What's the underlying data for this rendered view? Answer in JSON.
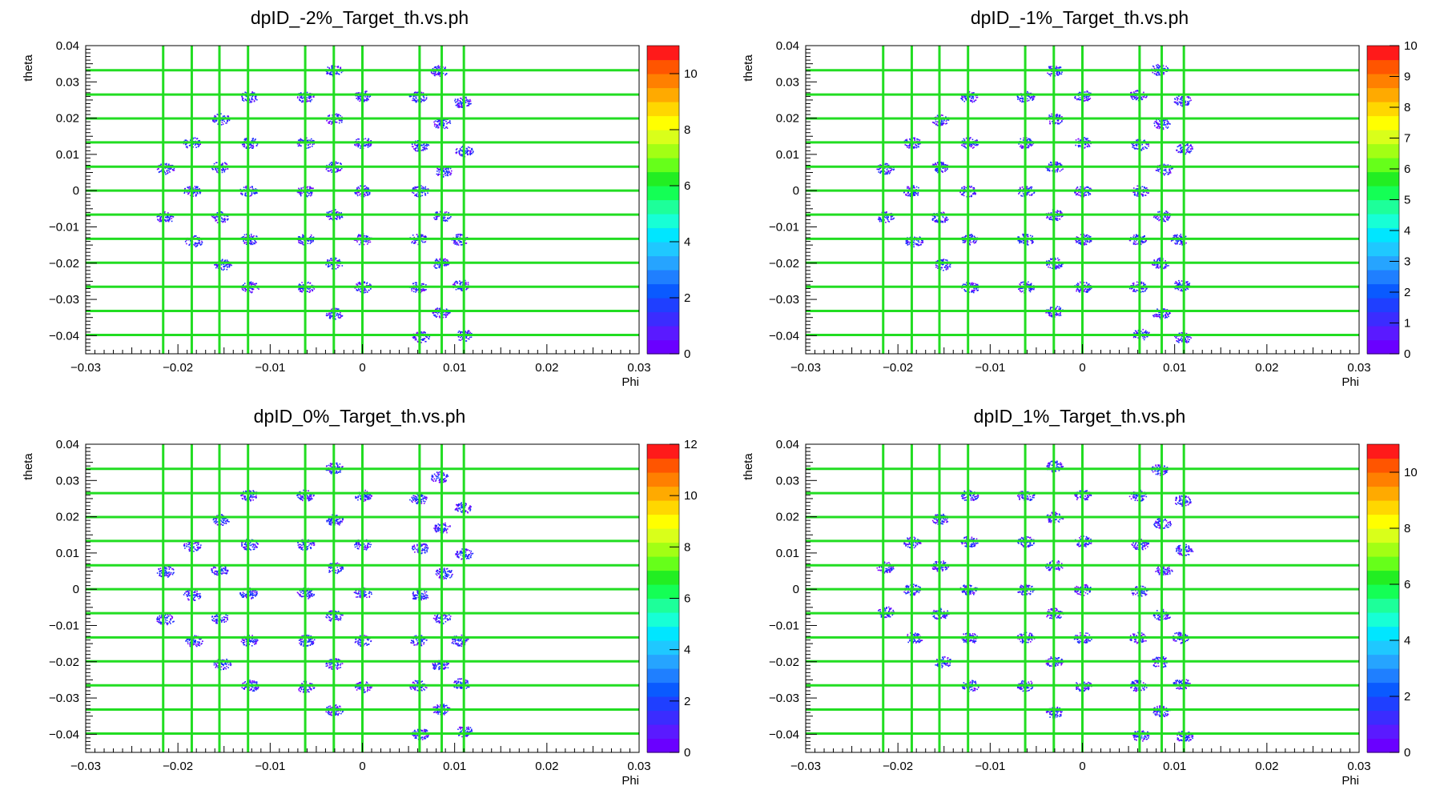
{
  "chart_data": [
    {
      "type": "heatmap",
      "title": "dpID_-2%_Target_th.vs.ph",
      "xlabel": "Phi",
      "ylabel": "theta",
      "xlim": [
        -0.03,
        0.03
      ],
      "ylim": [
        -0.045,
        0.04
      ],
      "xticks": [
        "−0.03",
        "−0.02",
        "−0.01",
        "0",
        "0.01",
        "0.02",
        "0.03"
      ],
      "yticks": [
        "0.04",
        "0.03",
        "0.02",
        "0.01",
        "0",
        "−0.01",
        "−0.02",
        "−0.03",
        "−0.04"
      ],
      "zlim": [
        0,
        11
      ],
      "zticks": [
        "0",
        "2",
        "4",
        "6",
        "8",
        "10"
      ],
      "zvalues": [
        0,
        2,
        4,
        6,
        8,
        10
      ],
      "grid_x": [
        -0.0216,
        -0.0185,
        -0.0155,
        -0.0124,
        -0.0062,
        -0.0031,
        0.0,
        0.0062,
        0.0086,
        0.011
      ],
      "grid_y": [
        0.0332,
        0.0265,
        0.0199,
        0.0133,
        0.0066,
        0.0,
        -0.0066,
        -0.0133,
        -0.0199,
        -0.0265,
        -0.0332,
        -0.0398
      ],
      "spots": [
        [
          -0.0031,
          0.0332
        ],
        [
          0.0083,
          0.0332
        ],
        [
          -0.0123,
          0.026
        ],
        [
          -0.0062,
          0.026
        ],
        [
          0.0,
          0.0263
        ],
        [
          0.006,
          0.026
        ],
        [
          0.0108,
          0.0245
        ],
        [
          -0.0154,
          0.0199
        ],
        [
          -0.0031,
          0.0199
        ],
        [
          0.0086,
          0.0186
        ],
        [
          -0.0185,
          0.0133
        ],
        [
          -0.0123,
          0.0133
        ],
        [
          -0.0062,
          0.0133
        ],
        [
          0.0,
          0.0133
        ],
        [
          0.0062,
          0.0125
        ],
        [
          0.011,
          0.011
        ],
        [
          -0.0214,
          0.0062
        ],
        [
          -0.0155,
          0.0066
        ],
        [
          -0.0031,
          0.0066
        ],
        [
          0.0088,
          0.0055
        ],
        [
          -0.0185,
          0.0
        ],
        [
          -0.0124,
          0.0
        ],
        [
          -0.0062,
          0.0
        ],
        [
          0.0,
          0.0
        ],
        [
          0.0062,
          0.0
        ],
        [
          -0.0214,
          -0.0072
        ],
        [
          -0.0155,
          -0.0072
        ],
        [
          -0.0031,
          -0.0066
        ],
        [
          0.0086,
          -0.0069
        ],
        [
          -0.0183,
          -0.0138
        ],
        [
          -0.0123,
          -0.0133
        ],
        [
          -0.0062,
          -0.0133
        ],
        [
          0.0,
          -0.0133
        ],
        [
          0.006,
          -0.0133
        ],
        [
          0.0105,
          -0.0133
        ],
        [
          -0.0152,
          -0.0203
        ],
        [
          -0.0031,
          -0.0199
        ],
        [
          0.0084,
          -0.0199
        ],
        [
          -0.0122,
          -0.0265
        ],
        [
          -0.0062,
          -0.0265
        ],
        [
          0.0,
          -0.0265
        ],
        [
          0.006,
          -0.0265
        ],
        [
          0.0107,
          -0.026
        ],
        [
          -0.0031,
          -0.0338
        ],
        [
          0.0085,
          -0.0335
        ],
        [
          0.0063,
          -0.0402
        ],
        [
          0.011,
          -0.0398
        ]
      ]
    },
    {
      "type": "heatmap",
      "title": "dpID_-1%_Target_th.vs.ph",
      "xlabel": "Phi",
      "ylabel": "theta",
      "xlim": [
        -0.03,
        0.03
      ],
      "ylim": [
        -0.045,
        0.04
      ],
      "xticks": [
        "−0.03",
        "−0.02",
        "−0.01",
        "0",
        "0.01",
        "0.02",
        "0.03"
      ],
      "yticks": [
        "0.04",
        "0.03",
        "0.02",
        "0.01",
        "0",
        "−0.01",
        "−0.02",
        "−0.03",
        "−0.04"
      ],
      "zlim": [
        0,
        10
      ],
      "zticks": [
        "0",
        "1",
        "2",
        "3",
        "4",
        "5",
        "6",
        "7",
        "8",
        "9",
        "10"
      ],
      "zvalues": [
        0,
        1,
        2,
        3,
        4,
        5,
        6,
        7,
        8,
        9,
        10
      ],
      "grid_x": [
        -0.0216,
        -0.0185,
        -0.0155,
        -0.0124,
        -0.0062,
        -0.0031,
        0.0,
        0.0062,
        0.0086,
        0.011
      ],
      "grid_y": [
        0.0332,
        0.0265,
        0.0199,
        0.0133,
        0.0066,
        0.0,
        -0.0066,
        -0.0133,
        -0.0199,
        -0.0265,
        -0.0332,
        -0.0398
      ],
      "spots": [
        [
          -0.0031,
          0.0332
        ],
        [
          0.0083,
          0.0335
        ],
        [
          -0.0123,
          0.026
        ],
        [
          -0.0062,
          0.026
        ],
        [
          0.0,
          0.0263
        ],
        [
          0.006,
          0.0265
        ],
        [
          0.0108,
          0.025
        ],
        [
          -0.0154,
          0.0195
        ],
        [
          -0.0031,
          0.0199
        ],
        [
          0.0086,
          0.0186
        ],
        [
          -0.0185,
          0.0133
        ],
        [
          -0.0123,
          0.0133
        ],
        [
          -0.0062,
          0.0133
        ],
        [
          0.0,
          0.0133
        ],
        [
          0.0062,
          0.0128
        ],
        [
          0.011,
          0.0118
        ],
        [
          -0.0214,
          0.0062
        ],
        [
          -0.0155,
          0.0066
        ],
        [
          -0.0031,
          0.0066
        ],
        [
          0.0088,
          0.006
        ],
        [
          -0.0185,
          0.0
        ],
        [
          -0.0124,
          0.0
        ],
        [
          -0.0062,
          0.0
        ],
        [
          0.0,
          0.0
        ],
        [
          0.0062,
          0.0
        ],
        [
          -0.0214,
          -0.0072
        ],
        [
          -0.0155,
          -0.0072
        ],
        [
          -0.0031,
          -0.0066
        ],
        [
          0.0086,
          -0.0069
        ],
        [
          -0.0183,
          -0.0138
        ],
        [
          -0.0123,
          -0.0133
        ],
        [
          -0.0062,
          -0.0133
        ],
        [
          0.0,
          -0.0133
        ],
        [
          0.006,
          -0.0133
        ],
        [
          0.0105,
          -0.0133
        ],
        [
          -0.0152,
          -0.0203
        ],
        [
          -0.0031,
          -0.0199
        ],
        [
          0.0084,
          -0.0199
        ],
        [
          -0.0122,
          -0.0265
        ],
        [
          -0.0062,
          -0.0265
        ],
        [
          0.0,
          -0.0265
        ],
        [
          0.006,
          -0.0265
        ],
        [
          0.0107,
          -0.026
        ],
        [
          -0.0031,
          -0.0332
        ],
        [
          0.0085,
          -0.0338
        ],
        [
          0.0063,
          -0.0395
        ],
        [
          0.0108,
          -0.0405
        ]
      ]
    },
    {
      "type": "heatmap",
      "title": "dpID_0%_Target_th.vs.ph",
      "xlabel": "Phi",
      "ylabel": "theta",
      "xlim": [
        -0.03,
        0.03
      ],
      "ylim": [
        -0.045,
        0.04
      ],
      "xticks": [
        "−0.03",
        "−0.02",
        "−0.01",
        "0",
        "0.01",
        "0.02",
        "0.03"
      ],
      "yticks": [
        "0.04",
        "0.03",
        "0.02",
        "0.01",
        "0",
        "−0.01",
        "−0.02",
        "−0.03",
        "−0.04"
      ],
      "zlim": [
        0,
        12
      ],
      "zticks": [
        "0",
        "2",
        "4",
        "6",
        "8",
        "10",
        "12"
      ],
      "zvalues": [
        0,
        2,
        4,
        6,
        8,
        10,
        12
      ],
      "grid_x": [
        -0.0216,
        -0.0185,
        -0.0155,
        -0.0124,
        -0.0062,
        -0.0031,
        0.0,
        0.0062,
        0.0086,
        0.011
      ],
      "grid_y": [
        0.0332,
        0.0265,
        0.0199,
        0.0133,
        0.0066,
        0.0,
        -0.0066,
        -0.0133,
        -0.0199,
        -0.0265,
        -0.0332,
        -0.0398
      ],
      "spots": [
        [
          -0.0031,
          0.0335
        ],
        [
          0.0083,
          0.031
        ],
        [
          -0.0123,
          0.026
        ],
        [
          -0.0062,
          0.026
        ],
        [
          0.0,
          0.026
        ],
        [
          0.006,
          0.025
        ],
        [
          0.0108,
          0.0225
        ],
        [
          -0.0154,
          0.0192
        ],
        [
          -0.0031,
          0.0192
        ],
        [
          0.0086,
          0.017
        ],
        [
          -0.0185,
          0.012
        ],
        [
          -0.0123,
          0.0125
        ],
        [
          -0.0062,
          0.0125
        ],
        [
          0.0,
          0.0125
        ],
        [
          0.0062,
          0.0115
        ],
        [
          0.011,
          0.0098
        ],
        [
          -0.0214,
          0.005
        ],
        [
          -0.0155,
          0.0055
        ],
        [
          -0.0031,
          0.006
        ],
        [
          0.0088,
          0.0045
        ],
        [
          -0.0185,
          -0.0015
        ],
        [
          -0.0124,
          -0.001
        ],
        [
          -0.0062,
          -0.001
        ],
        [
          0.0,
          -0.001
        ],
        [
          0.0062,
          -0.0015
        ],
        [
          -0.0214,
          -0.0082
        ],
        [
          -0.0155,
          -0.0078
        ],
        [
          -0.0031,
          -0.0072
        ],
        [
          0.0086,
          -0.0078
        ],
        [
          -0.0183,
          -0.0142
        ],
        [
          -0.0123,
          -0.014
        ],
        [
          -0.0062,
          -0.014
        ],
        [
          0.0,
          -0.014
        ],
        [
          0.006,
          -0.014
        ],
        [
          0.0105,
          -0.014
        ],
        [
          -0.0152,
          -0.0205
        ],
        [
          -0.0031,
          -0.0205
        ],
        [
          0.0084,
          -0.0208
        ],
        [
          -0.0122,
          -0.0265
        ],
        [
          -0.0062,
          -0.0268
        ],
        [
          0.0,
          -0.0268
        ],
        [
          0.006,
          -0.0265
        ],
        [
          0.0107,
          -0.026
        ],
        [
          -0.0031,
          -0.0332
        ],
        [
          0.0085,
          -0.033
        ],
        [
          0.0063,
          -0.0398
        ],
        [
          0.011,
          -0.039
        ]
      ]
    },
    {
      "type": "heatmap",
      "title": "dpID_1%_Target_th.vs.ph",
      "xlabel": "Phi",
      "ylabel": "theta",
      "xlim": [
        -0.03,
        0.03
      ],
      "ylim": [
        -0.045,
        0.04
      ],
      "xticks": [
        "−0.03",
        "−0.02",
        "−0.01",
        "0",
        "0.01",
        "0.02",
        "0.03"
      ],
      "yticks": [
        "0.04",
        "0.03",
        "0.02",
        "0.01",
        "0",
        "−0.01",
        "−0.02",
        "−0.03",
        "−0.04"
      ],
      "zlim": [
        0,
        11
      ],
      "zticks": [
        "0",
        "2",
        "4",
        "6",
        "8",
        "10"
      ],
      "zvalues": [
        0,
        2,
        4,
        6,
        8,
        10
      ],
      "grid_x": [
        -0.0216,
        -0.0185,
        -0.0155,
        -0.0124,
        -0.0062,
        -0.0031,
        0.0,
        0.0062,
        0.0086,
        0.011
      ],
      "grid_y": [
        0.0332,
        0.0265,
        0.0199,
        0.0133,
        0.0066,
        0.0,
        -0.0066,
        -0.0133,
        -0.0199,
        -0.0265,
        -0.0332,
        -0.0398
      ],
      "spots": [
        [
          -0.0031,
          0.034
        ],
        [
          0.0083,
          0.0332
        ],
        [
          -0.0123,
          0.026
        ],
        [
          -0.0062,
          0.026
        ],
        [
          0.0,
          0.026
        ],
        [
          0.006,
          0.026
        ],
        [
          0.0108,
          0.0245
        ],
        [
          -0.0154,
          0.0195
        ],
        [
          -0.0031,
          0.0199
        ],
        [
          0.0086,
          0.0183
        ],
        [
          -0.0185,
          0.013
        ],
        [
          -0.0123,
          0.0133
        ],
        [
          -0.0062,
          0.0133
        ],
        [
          0.0,
          0.0133
        ],
        [
          0.0062,
          0.0125
        ],
        [
          0.011,
          0.011
        ],
        [
          -0.0214,
          0.0062
        ],
        [
          -0.0155,
          0.0066
        ],
        [
          -0.0031,
          0.0066
        ],
        [
          0.0088,
          0.0055
        ],
        [
          -0.0185,
          0.0
        ],
        [
          -0.0124,
          0.0
        ],
        [
          -0.0062,
          0.0
        ],
        [
          0.0,
          0.0
        ],
        [
          0.0062,
          -0.0005
        ],
        [
          -0.0214,
          -0.0062
        ],
        [
          -0.0155,
          -0.0066
        ],
        [
          -0.0031,
          -0.0066
        ],
        [
          0.0086,
          -0.0069
        ],
        [
          -0.0183,
          -0.0133
        ],
        [
          -0.0123,
          -0.0133
        ],
        [
          -0.0062,
          -0.0133
        ],
        [
          0.0,
          -0.0133
        ],
        [
          0.006,
          -0.0133
        ],
        [
          0.0105,
          -0.0133
        ],
        [
          -0.0152,
          -0.0199
        ],
        [
          -0.0031,
          -0.0199
        ],
        [
          0.0084,
          -0.0199
        ],
        [
          -0.0122,
          -0.0265
        ],
        [
          -0.0062,
          -0.0265
        ],
        [
          0.0,
          -0.0265
        ],
        [
          0.006,
          -0.0265
        ],
        [
          0.0107,
          -0.026
        ],
        [
          -0.0031,
          -0.0338
        ],
        [
          0.0085,
          -0.0335
        ],
        [
          0.0063,
          -0.0402
        ],
        [
          0.011,
          -0.0405
        ]
      ]
    }
  ]
}
